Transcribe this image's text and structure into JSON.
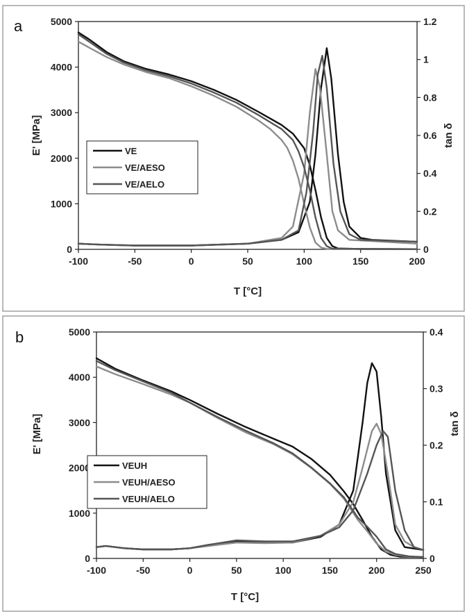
{
  "chart_data": [
    {
      "type": "line",
      "panel_label": "a",
      "xlabel": "T [°C]",
      "ylabel": "E' [MPa]",
      "y2label": "tan δ",
      "xlim": [
        -100,
        200
      ],
      "ylim": [
        0,
        5000
      ],
      "y2lim": [
        0,
        1.2
      ],
      "xticks": [
        -100,
        -50,
        0,
        50,
        100,
        150,
        200
      ],
      "yticks": [
        0,
        1000,
        2000,
        3000,
        4000,
        5000
      ],
      "y2ticks": [
        "0",
        "0.2",
        "0.4",
        "0.6",
        "0.8",
        "1",
        "1.2"
      ],
      "grid": false,
      "legend_position": "center-left",
      "series": [
        {
          "name": "VE",
          "color": "#111111",
          "storage_modulus": [
            [
              -100,
              4760
            ],
            [
              -90,
              4600
            ],
            [
              -75,
              4330
            ],
            [
              -60,
              4130
            ],
            [
              -40,
              3960
            ],
            [
              -20,
              3840
            ],
            [
              0,
              3690
            ],
            [
              20,
              3500
            ],
            [
              40,
              3280
            ],
            [
              60,
              3010
            ],
            [
              70,
              2870
            ],
            [
              80,
              2730
            ],
            [
              90,
              2540
            ],
            [
              100,
              2220
            ],
            [
              105,
              1850
            ],
            [
              110,
              1300
            ],
            [
              115,
              700
            ],
            [
              120,
              250
            ],
            [
              125,
              70
            ],
            [
              130,
              20
            ],
            [
              150,
              8
            ],
            [
              200,
              5
            ]
          ],
          "tan_delta": [
            [
              -100,
              0.03
            ],
            [
              -80,
              0.025
            ],
            [
              -50,
              0.02
            ],
            [
              0,
              0.02
            ],
            [
              50,
              0.03
            ],
            [
              80,
              0.05
            ],
            [
              95,
              0.09
            ],
            [
              105,
              0.25
            ],
            [
              110,
              0.5
            ],
            [
              115,
              0.85
            ],
            [
              120,
              1.06
            ],
            [
              124,
              0.9
            ],
            [
              130,
              0.5
            ],
            [
              135,
              0.25
            ],
            [
              140,
              0.12
            ],
            [
              150,
              0.06
            ],
            [
              160,
              0.05
            ],
            [
              200,
              0.04
            ]
          ]
        },
        {
          "name": "VE/AESO",
          "color": "#8c8c8c",
          "storage_modulus": [
            [
              -100,
              4560
            ],
            [
              -90,
              4420
            ],
            [
              -75,
              4220
            ],
            [
              -60,
              4060
            ],
            [
              -40,
              3890
            ],
            [
              -20,
              3760
            ],
            [
              0,
              3580
            ],
            [
              20,
              3370
            ],
            [
              40,
              3130
            ],
            [
              60,
              2820
            ],
            [
              70,
              2640
            ],
            [
              80,
              2400
            ],
            [
              85,
              2230
            ],
            [
              90,
              1950
            ],
            [
              95,
              1550
            ],
            [
              100,
              1000
            ],
            [
              105,
              480
            ],
            [
              110,
              150
            ],
            [
              115,
              40
            ],
            [
              120,
              10
            ],
            [
              200,
              5
            ]
          ],
          "tan_delta": [
            [
              -100,
              0.03
            ],
            [
              -80,
              0.025
            ],
            [
              -50,
              0.02
            ],
            [
              0,
              0.02
            ],
            [
              50,
              0.03
            ],
            [
              80,
              0.06
            ],
            [
              90,
              0.12
            ],
            [
              100,
              0.4
            ],
            [
              105,
              0.72
            ],
            [
              110,
              0.95
            ],
            [
              114,
              0.85
            ],
            [
              120,
              0.5
            ],
            [
              125,
              0.2
            ],
            [
              130,
              0.1
            ],
            [
              140,
              0.05
            ],
            [
              200,
              0.03
            ]
          ]
        },
        {
          "name": "VE/AELO",
          "color": "#555555",
          "storage_modulus": [
            [
              -100,
              4720
            ],
            [
              -90,
              4550
            ],
            [
              -75,
              4290
            ],
            [
              -60,
              4100
            ],
            [
              -40,
              3930
            ],
            [
              -20,
              3800
            ],
            [
              0,
              3640
            ],
            [
              20,
              3440
            ],
            [
              40,
              3220
            ],
            [
              60,
              2940
            ],
            [
              70,
              2790
            ],
            [
              80,
              2640
            ],
            [
              90,
              2400
            ],
            [
              95,
              2150
            ],
            [
              100,
              1800
            ],
            [
              105,
              1300
            ],
            [
              110,
              700
            ],
            [
              115,
              250
            ],
            [
              120,
              70
            ],
            [
              125,
              15
            ],
            [
              200,
              5
            ]
          ],
          "tan_delta": [
            [
              -100,
              0.03
            ],
            [
              -80,
              0.025
            ],
            [
              -50,
              0.02
            ],
            [
              0,
              0.02
            ],
            [
              50,
              0.03
            ],
            [
              80,
              0.05
            ],
            [
              95,
              0.1
            ],
            [
              102,
              0.3
            ],
            [
              108,
              0.62
            ],
            [
              112,
              0.92
            ],
            [
              116,
              1.02
            ],
            [
              120,
              0.85
            ],
            [
              126,
              0.45
            ],
            [
              132,
              0.2
            ],
            [
              140,
              0.08
            ],
            [
              150,
              0.05
            ],
            [
              200,
              0.04
            ]
          ]
        }
      ]
    },
    {
      "type": "line",
      "panel_label": "b",
      "xlabel": "T [°C]",
      "ylabel": "E' [MPa]",
      "y2label": "tan δ",
      "xlim": [
        -100,
        250
      ],
      "ylim": [
        0,
        5000
      ],
      "y2lim": [
        0,
        0.4
      ],
      "xticks": [
        -100,
        -50,
        0,
        50,
        100,
        150,
        200,
        250
      ],
      "yticks": [
        0,
        1000,
        2000,
        3000,
        4000,
        5000
      ],
      "y2ticks": [
        "0",
        "0.1",
        "0.2",
        "0.3",
        "0.4"
      ],
      "grid": false,
      "legend_position": "center-left",
      "series": [
        {
          "name": "VEUH",
          "color": "#111111",
          "storage_modulus": [
            [
              -100,
              4420
            ],
            [
              -80,
              4190
            ],
            [
              -50,
              3930
            ],
            [
              -20,
              3690
            ],
            [
              0,
              3500
            ],
            [
              30,
              3190
            ],
            [
              60,
              2900
            ],
            [
              90,
              2640
            ],
            [
              110,
              2470
            ],
            [
              130,
              2200
            ],
            [
              150,
              1850
            ],
            [
              165,
              1480
            ],
            [
              175,
              1200
            ],
            [
              185,
              850
            ],
            [
              195,
              480
            ],
            [
              205,
              200
            ],
            [
              215,
              80
            ],
            [
              225,
              40
            ],
            [
              250,
              30
            ]
          ],
          "tan_delta": [
            [
              -100,
              0.02
            ],
            [
              -90,
              0.022
            ],
            [
              -70,
              0.018
            ],
            [
              -50,
              0.016
            ],
            [
              -20,
              0.016
            ],
            [
              0,
              0.018
            ],
            [
              20,
              0.024
            ],
            [
              50,
              0.03
            ],
            [
              80,
              0.028
            ],
            [
              110,
              0.028
            ],
            [
              140,
              0.038
            ],
            [
              160,
              0.06
            ],
            [
              175,
              0.12
            ],
            [
              185,
              0.24
            ],
            [
              190,
              0.31
            ],
            [
              195,
              0.345
            ],
            [
              200,
              0.33
            ],
            [
              205,
              0.25
            ],
            [
              210,
              0.15
            ],
            [
              220,
              0.05
            ],
            [
              230,
              0.02
            ],
            [
              250,
              0.015
            ]
          ]
        },
        {
          "name": "VEUH/AESO",
          "color": "#8c8c8c",
          "storage_modulus": [
            [
              -100,
              4240
            ],
            [
              -80,
              4070
            ],
            [
              -50,
              3850
            ],
            [
              -20,
              3620
            ],
            [
              0,
              3440
            ],
            [
              30,
              3100
            ],
            [
              60,
              2780
            ],
            [
              90,
              2520
            ],
            [
              110,
              2300
            ],
            [
              130,
              2000
            ],
            [
              150,
              1650
            ],
            [
              165,
              1320
            ],
            [
              180,
              850
            ],
            [
              190,
              600
            ],
            [
              200,
              330
            ],
            [
              210,
              150
            ],
            [
              220,
              80
            ],
            [
              235,
              40
            ],
            [
              250,
              30
            ]
          ],
          "tan_delta": [
            [
              -100,
              0.02
            ],
            [
              -90,
              0.022
            ],
            [
              -70,
              0.018
            ],
            [
              -50,
              0.016
            ],
            [
              -20,
              0.016
            ],
            [
              0,
              0.018
            ],
            [
              20,
              0.022
            ],
            [
              50,
              0.028
            ],
            [
              80,
              0.027
            ],
            [
              110,
              0.028
            ],
            [
              140,
              0.04
            ],
            [
              160,
              0.06
            ],
            [
              175,
              0.1
            ],
            [
              185,
              0.16
            ],
            [
              195,
              0.225
            ],
            [
              200,
              0.238
            ],
            [
              205,
              0.22
            ],
            [
              212,
              0.15
            ],
            [
              220,
              0.06
            ],
            [
              230,
              0.03
            ],
            [
              240,
              0.02
            ],
            [
              250,
              0.015
            ]
          ]
        },
        {
          "name": "VEUH/AELO",
          "color": "#555555",
          "storage_modulus": [
            [
              -100,
              4360
            ],
            [
              -80,
              4160
            ],
            [
              -50,
              3910
            ],
            [
              -20,
              3660
            ],
            [
              0,
              3440
            ],
            [
              30,
              3120
            ],
            [
              60,
              2820
            ],
            [
              90,
              2540
            ],
            [
              110,
              2320
            ],
            [
              130,
              2010
            ],
            [
              150,
              1660
            ],
            [
              165,
              1350
            ],
            [
              180,
              900
            ],
            [
              190,
              700
            ],
            [
              200,
              480
            ],
            [
              210,
              200
            ],
            [
              220,
              100
            ],
            [
              235,
              45
            ],
            [
              250,
              30
            ]
          ],
          "tan_delta": [
            [
              -100,
              0.02
            ],
            [
              -90,
              0.022
            ],
            [
              -70,
              0.018
            ],
            [
              -50,
              0.016
            ],
            [
              -20,
              0.016
            ],
            [
              0,
              0.018
            ],
            [
              20,
              0.024
            ],
            [
              50,
              0.032
            ],
            [
              80,
              0.03
            ],
            [
              110,
              0.03
            ],
            [
              140,
              0.04
            ],
            [
              160,
              0.055
            ],
            [
              175,
              0.085
            ],
            [
              190,
              0.15
            ],
            [
              200,
              0.2
            ],
            [
              207,
              0.225
            ],
            [
              212,
              0.215
            ],
            [
              220,
              0.12
            ],
            [
              230,
              0.05
            ],
            [
              240,
              0.02
            ],
            [
              250,
              0.015
            ]
          ]
        }
      ]
    }
  ]
}
